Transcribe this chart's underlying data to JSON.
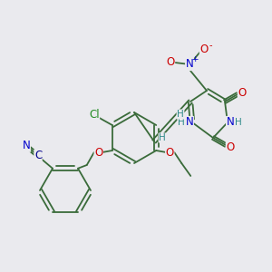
{
  "background_color": "#eaeaee",
  "bond_color": "#3a6b3a",
  "atom_colors": {
    "O": "#cc0000",
    "N": "#0000cc",
    "Cl": "#228B22",
    "C_nitrile": "#00008B",
    "H": "#2d8a8a",
    "default": "#3a6b3a"
  },
  "figsize": [
    3.0,
    3.0
  ],
  "dpi": 100
}
